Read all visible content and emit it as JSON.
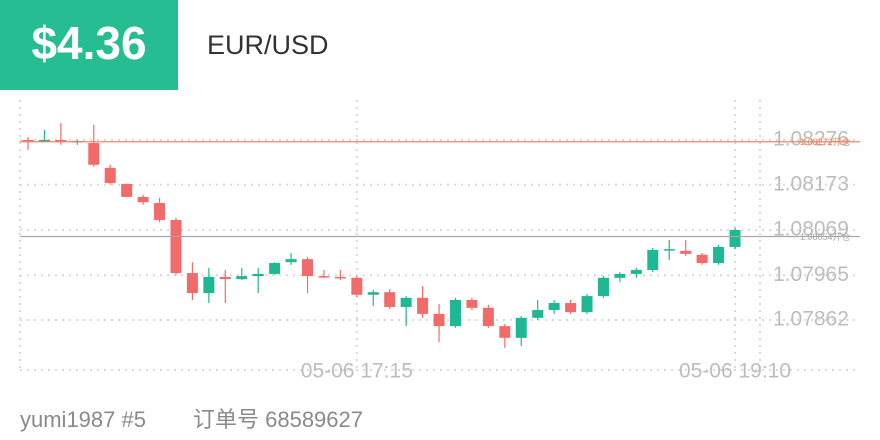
{
  "header": {
    "price": "$4.36",
    "symbol": "EUR/USD"
  },
  "footer": {
    "user": "yumi1987 #5",
    "order": "订单号 68589627"
  },
  "chart_data": {
    "type": "candlestick",
    "categories": [
      null,
      null,
      null,
      null,
      null,
      null,
      null,
      null,
      null,
      null,
      null,
      null,
      null,
      null,
      null,
      null,
      null,
      null,
      null,
      null,
      "05-06 17:15",
      null,
      null,
      null,
      null,
      null,
      null,
      null,
      null,
      null,
      null,
      null,
      null,
      null,
      null,
      null,
      null,
      null,
      null,
      null,
      null,
      null,
      null,
      "05-06 19:10"
    ],
    "open": [
      1.08276,
      1.08274,
      1.08276,
      1.08271,
      1.08269,
      1.08212,
      1.08175,
      1.08145,
      1.08131,
      1.08092,
      1.0797,
      1.07924,
      1.07961,
      1.07956,
      1.07963,
      1.07968,
      1.07995,
      1.08002,
      1.07963,
      1.07961,
      1.07959,
      1.0792,
      1.07926,
      1.07892,
      1.07913,
      1.07876,
      1.07848,
      1.07908,
      1.0789,
      1.07848,
      1.07821,
      1.07867,
      1.07885,
      1.07901,
      1.0788,
      1.07917,
      1.07959,
      1.07968,
      1.07977,
      1.08023,
      1.08021,
      1.08012,
      1.07993,
      1.0803
    ],
    "high": [
      1.08283,
      1.08299,
      1.08315,
      1.08276,
      1.08311,
      1.08219,
      1.08175,
      1.0815,
      1.08143,
      1.08097,
      1.07995,
      1.07982,
      1.07977,
      1.07982,
      1.07982,
      1.07995,
      1.08016,
      1.08007,
      1.07977,
      1.07977,
      1.07963,
      1.07931,
      1.07933,
      1.07917,
      1.0794,
      1.07899,
      1.07913,
      1.07913,
      1.07897,
      1.07853,
      1.07871,
      1.07908,
      1.07908,
      1.07908,
      1.07922,
      1.07963,
      1.07972,
      1.07982,
      1.08028,
      1.08046,
      1.08046,
      1.08016,
      1.08035,
      1.08074
    ],
    "low": [
      1.08253,
      1.08271,
      1.08265,
      1.08265,
      1.08214,
      1.08173,
      1.08145,
      1.08127,
      1.08087,
      1.07966,
      1.07908,
      1.07901,
      1.07901,
      1.07954,
      1.07924,
      1.07966,
      1.07989,
      1.07924,
      1.07959,
      1.07954,
      1.07915,
      1.07894,
      1.07887,
      1.07848,
      1.07867,
      1.07811,
      1.07844,
      1.07885,
      1.07844,
      1.07798,
      1.07802,
      1.07862,
      1.07876,
      1.07876,
      1.07876,
      1.07913,
      1.07949,
      1.07959,
      1.07972,
      1.08,
      1.08009,
      1.07989,
      1.07989,
      1.08025
    ],
    "close": [
      1.08274,
      1.08276,
      1.08271,
      1.08274,
      1.08219,
      1.08177,
      1.08145,
      1.08133,
      1.08092,
      1.0797,
      1.07924,
      1.07961,
      1.07956,
      1.07963,
      1.07968,
      1.07993,
      1.08002,
      1.07963,
      1.07961,
      1.07959,
      1.0792,
      1.07926,
      1.07892,
      1.07913,
      1.07876,
      1.07848,
      1.07908,
      1.0789,
      1.07848,
      1.07821,
      1.07867,
      1.07885,
      1.07901,
      1.0788,
      1.07917,
      1.07959,
      1.07968,
      1.07977,
      1.08023,
      1.08025,
      1.08014,
      1.07993,
      1.0803,
      1.08069
    ],
    "up_color": "#1fb894",
    "down_color": "#f26b6b",
    "ylim": [
      1.07747,
      1.08368
    ],
    "yticks": [
      1.08276,
      1.08173,
      1.08069,
      1.07965,
      1.07862
    ],
    "grid": true,
    "price_lines": [
      {
        "value": 1.08272,
        "label": "1.08272开仓",
        "color": "#f2845c"
      },
      {
        "value": 1.08054,
        "label": "1.08054开仓",
        "color": "#a8a8a8"
      }
    ]
  }
}
